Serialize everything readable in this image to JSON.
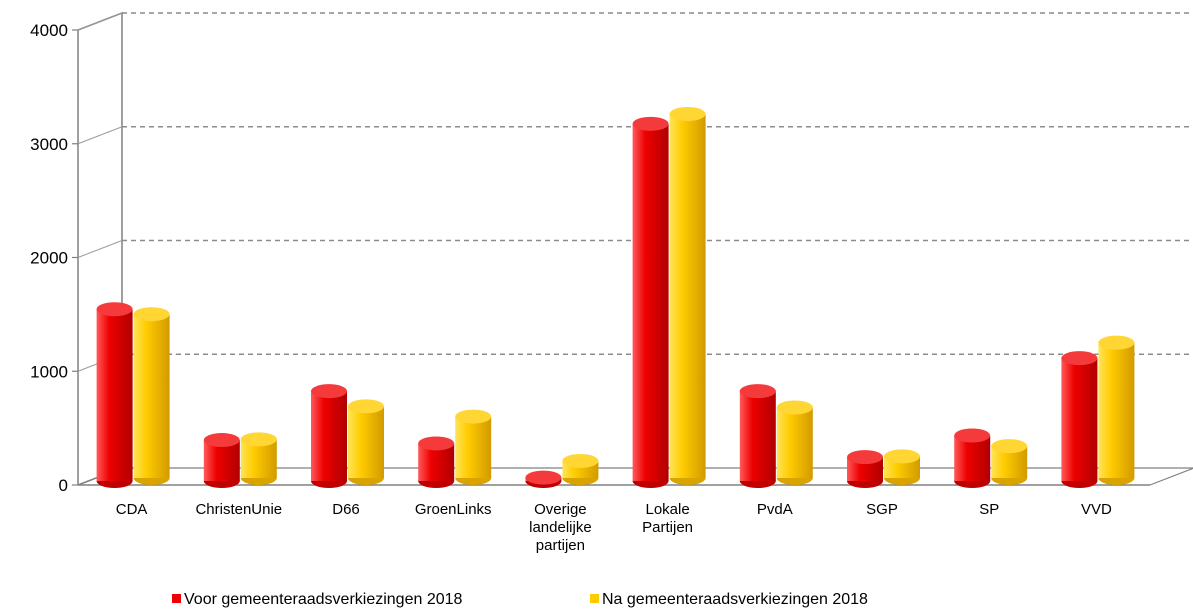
{
  "chart_data": {
    "type": "bar",
    "categories": [
      "CDA",
      "ChristenUnie",
      "D66",
      "GroenLinks",
      "Overige landelijke partijen",
      "Lokale Partijen",
      "PvdA",
      "SGP",
      "SP",
      "VVD"
    ],
    "category_lines": [
      [
        "CDA"
      ],
      [
        "ChristenUnie"
      ],
      [
        "D66"
      ],
      [
        "GroenLinks"
      ],
      [
        "Overige",
        "landelijke",
        "partijen"
      ],
      [
        "Lokale",
        "Partijen"
      ],
      [
        "PvdA"
      ],
      [
        "SGP"
      ],
      [
        "SP"
      ],
      [
        "VVD"
      ]
    ],
    "series": [
      {
        "name": "Voor gemeenteraadsverkiezingen 2018",
        "color": "#ee0000",
        "values": [
          1510,
          360,
          790,
          330,
          30,
          3140,
          790,
          210,
          400,
          1080
        ]
      },
      {
        "name": "Na gemeenteraadsverkiezingen 2018",
        "color": "#ffcc00",
        "values": [
          1440,
          340,
          630,
          540,
          150,
          3200,
          620,
          190,
          280,
          1190
        ]
      }
    ],
    "yticks": [
      0,
      1000,
      2000,
      3000,
      4000
    ],
    "ylim": [
      0,
      4000
    ],
    "grid": true,
    "legend": "bottom",
    "title": "",
    "xlabel": "",
    "ylabel": ""
  }
}
